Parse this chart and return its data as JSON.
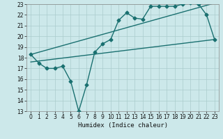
{
  "xlabel": "Humidex (Indice chaleur)",
  "background_color": "#cce8ea",
  "grid_color": "#aacccc",
  "line_color": "#1a7070",
  "xlim": [
    -0.5,
    23.5
  ],
  "ylim": [
    13,
    23
  ],
  "xticks": [
    0,
    1,
    2,
    3,
    4,
    5,
    6,
    7,
    8,
    9,
    10,
    11,
    12,
    13,
    14,
    15,
    16,
    17,
    18,
    19,
    20,
    21,
    22,
    23
  ],
  "yticks": [
    13,
    14,
    15,
    16,
    17,
    18,
    19,
    20,
    21,
    22,
    23
  ],
  "line1_x": [
    0,
    1,
    2,
    3,
    4,
    5,
    6,
    7,
    8,
    9,
    10,
    11,
    12,
    13,
    14,
    15,
    16,
    17,
    18,
    19,
    20,
    21,
    22,
    23
  ],
  "line1_y": [
    18.3,
    17.5,
    17.0,
    17.0,
    17.2,
    15.8,
    13.0,
    15.5,
    18.5,
    19.3,
    19.7,
    21.5,
    22.2,
    21.7,
    21.6,
    22.8,
    22.8,
    22.8,
    22.8,
    23.0,
    23.1,
    23.0,
    22.0,
    19.7
  ],
  "line2_x": [
    0,
    23
  ],
  "line2_y": [
    17.6,
    19.7
  ],
  "line3_x": [
    0,
    23
  ],
  "line3_y": [
    18.3,
    23.1
  ],
  "marker_size": 2.5,
  "line_width": 1.0
}
